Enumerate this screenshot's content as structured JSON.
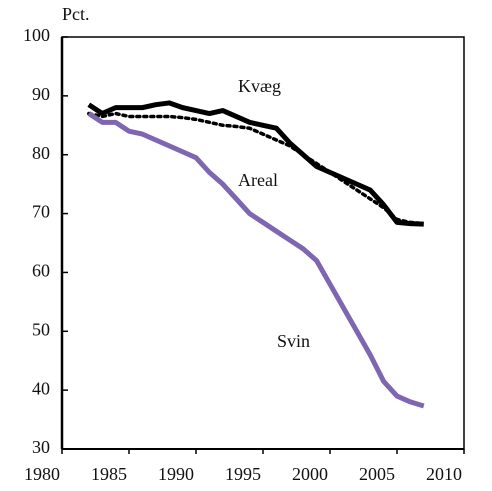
{
  "chart_data": {
    "type": "line",
    "y_label": "Pct.",
    "x": [
      1982,
      1983,
      1984,
      1985,
      1986,
      1987,
      1988,
      1989,
      1990,
      1991,
      1992,
      1993,
      1994,
      1995,
      1996,
      1997,
      1998,
      1999,
      2000,
      2001,
      2002,
      2003,
      2004,
      2005,
      2006,
      2007
    ],
    "series": [
      {
        "name": "Kvæg",
        "color": "#000000",
        "style": "solid",
        "values": [
          88.5,
          87,
          88,
          88,
          88,
          88.5,
          88.8,
          88,
          87.5,
          87,
          87.5,
          86.5,
          85.5,
          85,
          84.5,
          82,
          80,
          78,
          77,
          76,
          75,
          74,
          71.5,
          68.5,
          68.3,
          68.2
        ]
      },
      {
        "name": "Areal",
        "color": "#000000",
        "style": "dotted",
        "values": [
          87,
          86.5,
          87,
          86.5,
          86.5,
          86.5,
          86.5,
          86.3,
          86,
          85.5,
          85,
          84.8,
          84.5,
          83.5,
          82.5,
          81.5,
          80,
          78.5,
          77,
          75.5,
          74,
          72.5,
          71,
          69,
          68.5,
          68.3
        ]
      },
      {
        "name": "Svin",
        "color": "#7f66b0",
        "style": "solid",
        "values": [
          87,
          85.5,
          85.5,
          84,
          83.5,
          82.5,
          81.5,
          80.5,
          79.5,
          77,
          75,
          72.5,
          70,
          68.5,
          67,
          65.5,
          64,
          62,
          58,
          54,
          50,
          46,
          41.5,
          39,
          38,
          37.3
        ]
      }
    ],
    "xlim": [
      1980,
      2010
    ],
    "xticks": [
      1980,
      1985,
      1990,
      1995,
      2000,
      2005,
      2010
    ],
    "ylim": [
      30,
      100
    ],
    "yticks": [
      30,
      40,
      50,
      60,
      70,
      80,
      90,
      100
    ]
  }
}
